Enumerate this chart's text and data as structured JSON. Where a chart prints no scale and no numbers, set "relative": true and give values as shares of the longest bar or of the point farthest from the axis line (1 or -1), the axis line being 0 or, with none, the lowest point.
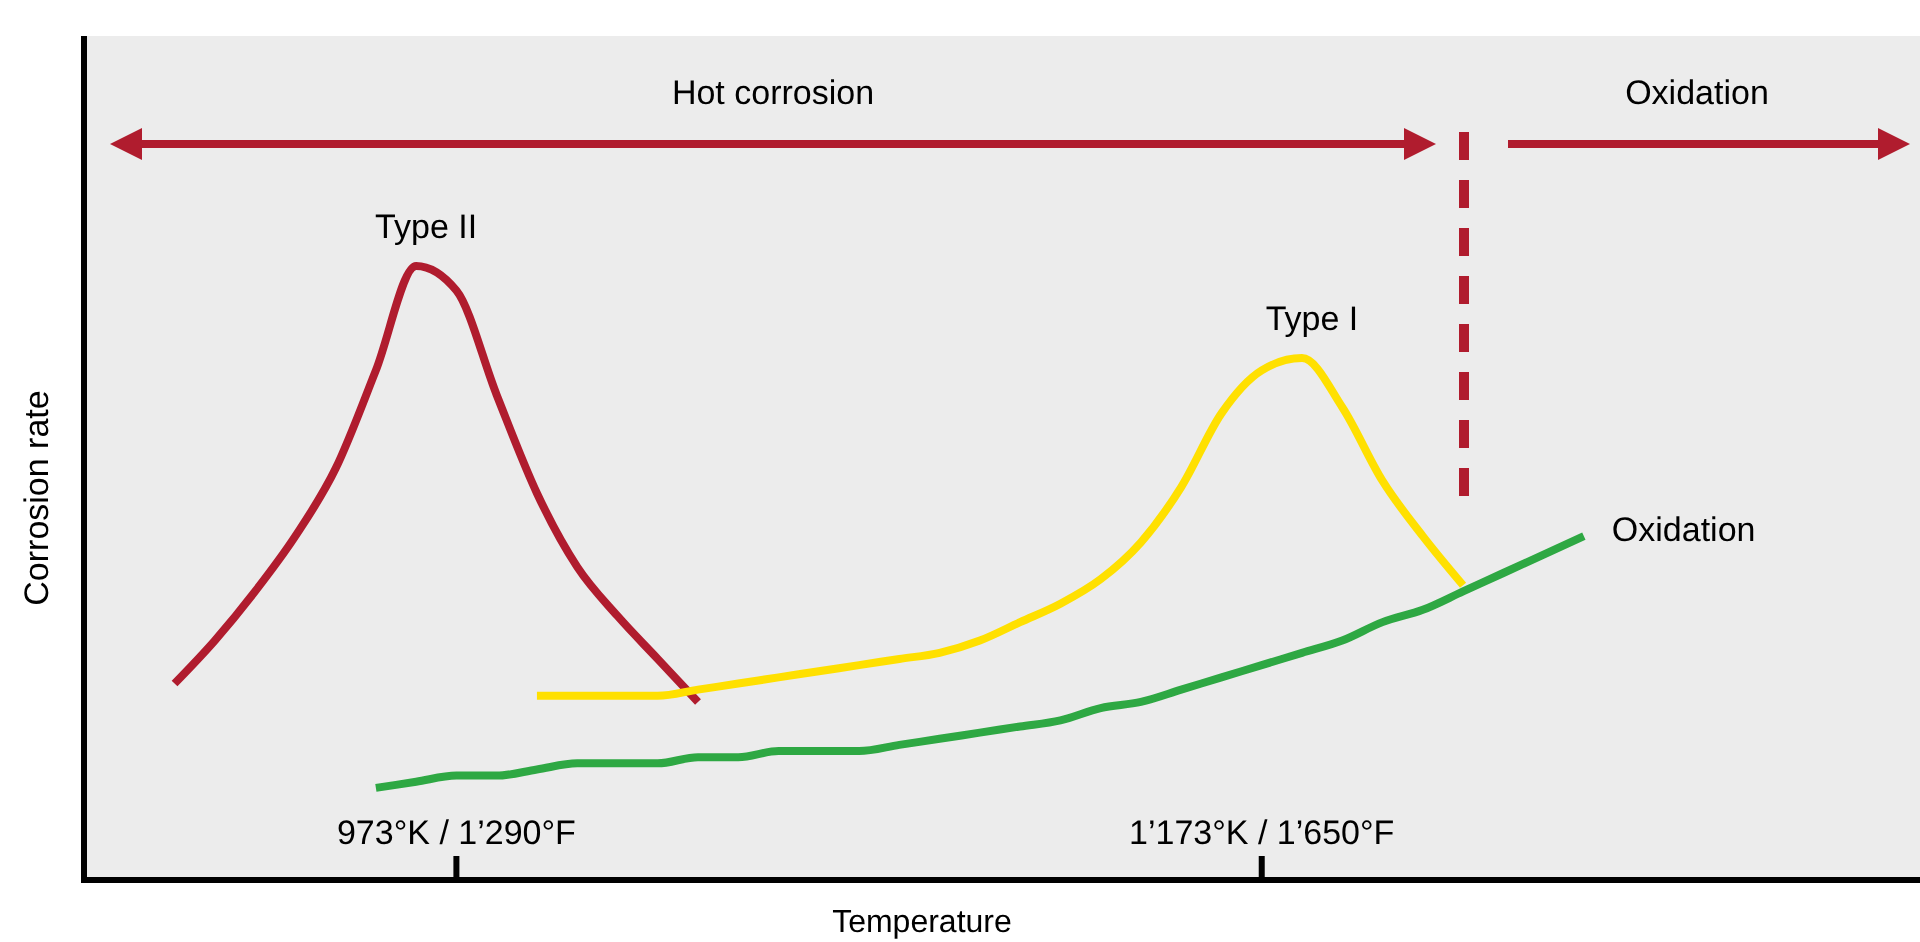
{
  "chart_data": {
    "type": "line",
    "relative": true,
    "xlabel": "Temperature",
    "ylabel": "Corrosion rate",
    "categories": [
      null,
      null,
      null,
      null,
      null,
      null,
      null,
      null,
      null,
      "973°K / 1’290°F",
      null,
      null,
      null,
      null,
      null,
      null,
      null,
      null,
      null,
      null,
      null,
      null,
      null,
      null,
      null,
      null,
      null,
      null,
      null,
      "1’173°K / 1’650°F",
      null,
      null,
      null,
      null,
      null,
      null,
      null,
      null,
      null,
      null,
      null,
      null,
      null,
      null,
      null,
      null
    ],
    "grid": false,
    "marker": "none",
    "line_style": "solid",
    "series": [
      {
        "name": "Type II",
        "color": "#b01c2e",
        "values": [
          null,
          null,
          0.32,
          0.39,
          0.47,
          0.56,
          0.67,
          0.83,
          1.0,
          0.96,
          0.79,
          0.63,
          0.51,
          0.43,
          0.36,
          0.29,
          null,
          null,
          null,
          null,
          null,
          null,
          null,
          null,
          null,
          null,
          null,
          null,
          null,
          null,
          null,
          null,
          null,
          null,
          null,
          null,
          null,
          null,
          null,
          null,
          null,
          null,
          null,
          null,
          null,
          null
        ]
      },
      {
        "name": "Type I",
        "color": "#ffe000",
        "values": [
          null,
          null,
          null,
          null,
          null,
          null,
          null,
          null,
          null,
          null,
          null,
          0.3,
          0.3,
          0.3,
          0.3,
          0.31,
          0.32,
          0.33,
          0.34,
          0.35,
          0.36,
          0.37,
          0.39,
          0.42,
          0.45,
          0.49,
          0.55,
          0.64,
          0.76,
          0.83,
          0.85,
          0.77,
          0.65,
          0.56,
          0.48,
          null,
          null,
          null,
          null,
          null,
          null,
          null,
          null,
          null,
          null,
          null
        ]
      },
      {
        "name": "Oxidation",
        "color": "#2ea843",
        "values": [
          null,
          null,
          null,
          null,
          null,
          null,
          null,
          0.15,
          0.16,
          0.17,
          0.17,
          0.18,
          0.19,
          0.19,
          0.19,
          0.2,
          0.2,
          0.21,
          0.21,
          0.21,
          0.22,
          0.23,
          0.24,
          0.25,
          0.26,
          0.28,
          0.29,
          0.31,
          0.33,
          0.35,
          0.37,
          0.39,
          0.42,
          0.44,
          0.47,
          0.5,
          0.53,
          0.56,
          null,
          null,
          null,
          null,
          null,
          null,
          null,
          null
        ]
      }
    ],
    "annotations": [
      "Hot corrosion",
      "Oxidation"
    ]
  }
}
